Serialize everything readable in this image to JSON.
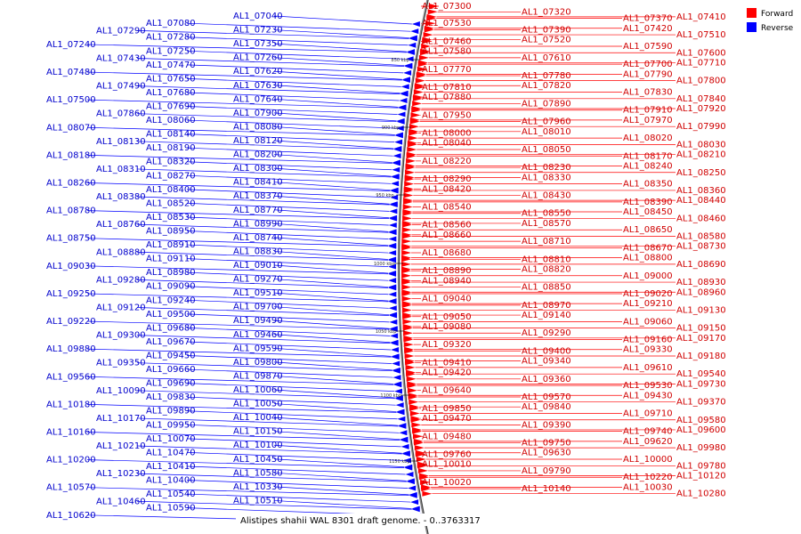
{
  "caption": "Alistipes shahii WAL 8301 draft genome. - 0..3763317",
  "colors": {
    "forward": "#ff0000",
    "reverse": "#0000ff",
    "forward_text": "#d00000",
    "reverse_text": "#0000cc",
    "backbone": "#888888"
  },
  "legend": [
    {
      "label": "Forward",
      "color": "#ff0000"
    },
    {
      "label": "Reverse",
      "color": "#0000ff"
    }
  ],
  "ticks": [
    "850 kbp",
    "900 kbp",
    "950 kbp",
    "1000 kbp",
    "1050 kbp",
    "1100 kbp",
    "1150 kbp"
  ],
  "reverse_genes": [
    "AL1_07040",
    "AL1_07080",
    "AL1_07290",
    "AL1_07230",
    "AL1_07280",
    "AL1_07240",
    "AL1_07350",
    "AL1_07250",
    "AL1_07430",
    "AL1_07260",
    "AL1_07470",
    "AL1_07480",
    "AL1_07620",
    "AL1_07650",
    "AL1_07490",
    "AL1_07630",
    "AL1_07680",
    "AL1_07500",
    "AL1_07640",
    "AL1_07690",
    "AL1_07860",
    "AL1_07900",
    "AL1_08060",
    "AL1_08070",
    "AL1_08080",
    "AL1_08140",
    "AL1_08130",
    "AL1_08120",
    "AL1_08190",
    "AL1_08180",
    "AL1_08200",
    "AL1_08320",
    "AL1_08310",
    "AL1_08300",
    "AL1_08270",
    "AL1_08260",
    "AL1_08410",
    "AL1_08400",
    "AL1_08380",
    "AL1_08370",
    "AL1_08520",
    "AL1_08780",
    "AL1_08770",
    "AL1_08530",
    "AL1_08760",
    "AL1_08990",
    "AL1_08950",
    "AL1_08750",
    "AL1_08740",
    "AL1_08910",
    "AL1_08880",
    "AL1_08830",
    "AL1_09110",
    "AL1_09030",
    "AL1_09010",
    "AL1_08980",
    "AL1_09280",
    "AL1_09270",
    "AL1_09090",
    "AL1_09250",
    "AL1_09510",
    "AL1_09240",
    "AL1_09120",
    "AL1_09700",
    "AL1_09500",
    "AL1_09220",
    "AL1_09490",
    "AL1_09680",
    "AL1_09300",
    "AL1_09460",
    "AL1_09670",
    "AL1_09880",
    "AL1_09590",
    "AL1_09450",
    "AL1_09350",
    "AL1_09800",
    "AL1_09660",
    "AL1_09560",
    "AL1_09870",
    "AL1_09690",
    "AL1_10090",
    "AL1_10060",
    "AL1_09830",
    "AL1_10180",
    "AL1_10050",
    "AL1_09890",
    "AL1_10170",
    "AL1_10040",
    "AL1_09950",
    "AL1_10160",
    "AL1_10150",
    "AL1_10070",
    "AL1_10210",
    "AL1_10100",
    "AL1_10470",
    "AL1_10200",
    "AL1_10450",
    "AL1_10410",
    "AL1_10230",
    "AL1_10580",
    "AL1_10400",
    "AL1_10570",
    "AL1_10330",
    "AL1_10540",
    "AL1_10460",
    "AL1_10510",
    "AL1_10590",
    "AL1_10620"
  ],
  "forward_genes": [
    "AL1_07300",
    "AL1_07320",
    "AL1_07370",
    "AL1_07410",
    "AL1_07530",
    "AL1_07390",
    "AL1_07420",
    "AL1_07510",
    "AL1_07460",
    "AL1_07520",
    "AL1_07590",
    "AL1_07600",
    "AL1_07580",
    "AL1_07610",
    "AL1_07700",
    "AL1_07710",
    "AL1_07770",
    "AL1_07780",
    "AL1_07790",
    "AL1_07800",
    "AL1_07810",
    "AL1_07820",
    "AL1_07830",
    "AL1_07840",
    "AL1_07880",
    "AL1_07890",
    "AL1_07910",
    "AL1_07920",
    "AL1_07950",
    "AL1_07960",
    "AL1_07970",
    "AL1_07990",
    "AL1_08000",
    "AL1_08010",
    "AL1_08020",
    "AL1_08030",
    "AL1_08040",
    "AL1_08050",
    "AL1_08170",
    "AL1_08210",
    "AL1_08220",
    "AL1_08230",
    "AL1_08240",
    "AL1_08250",
    "AL1_08290",
    "AL1_08330",
    "AL1_08350",
    "AL1_08360",
    "AL1_08420",
    "AL1_08430",
    "AL1_08390",
    "AL1_08440",
    "AL1_08540",
    "AL1_08550",
    "AL1_08450",
    "AL1_08460",
    "AL1_08560",
    "AL1_08570",
    "AL1_08650",
    "AL1_08580",
    "AL1_08660",
    "AL1_08710",
    "AL1_08670",
    "AL1_08730",
    "AL1_08680",
    "AL1_08810",
    "AL1_08800",
    "AL1_08690",
    "AL1_08890",
    "AL1_08820",
    "AL1_09000",
    "AL1_08930",
    "AL1_08940",
    "AL1_08850",
    "AL1_09020",
    "AL1_08960",
    "AL1_09040",
    "AL1_08970",
    "AL1_09210",
    "AL1_09130",
    "AL1_09050",
    "AL1_09140",
    "AL1_09060",
    "AL1_09150",
    "AL1_09080",
    "AL1_09290",
    "AL1_09160",
    "AL1_09170",
    "AL1_09320",
    "AL1_09400",
    "AL1_09330",
    "AL1_09180",
    "AL1_09410",
    "AL1_09340",
    "AL1_09610",
    "AL1_09540",
    "AL1_09420",
    "AL1_09360",
    "AL1_09530",
    "AL1_09730",
    "AL1_09640",
    "AL1_09570",
    "AL1_09430",
    "AL1_09370",
    "AL1_09850",
    "AL1_09840",
    "AL1_09710",
    "AL1_09580",
    "AL1_09470",
    "AL1_09390",
    "AL1_09740",
    "AL1_09600",
    "AL1_09480",
    "AL1_09750",
    "AL1_09620",
    "AL1_09980",
    "AL1_09760",
    "AL1_09630",
    "AL1_10000",
    "AL1_09780",
    "AL1_10010",
    "AL1_09790",
    "AL1_10220",
    "AL1_10120",
    "AL1_10020",
    "AL1_10140",
    "AL1_10030",
    "AL1_10280"
  ]
}
